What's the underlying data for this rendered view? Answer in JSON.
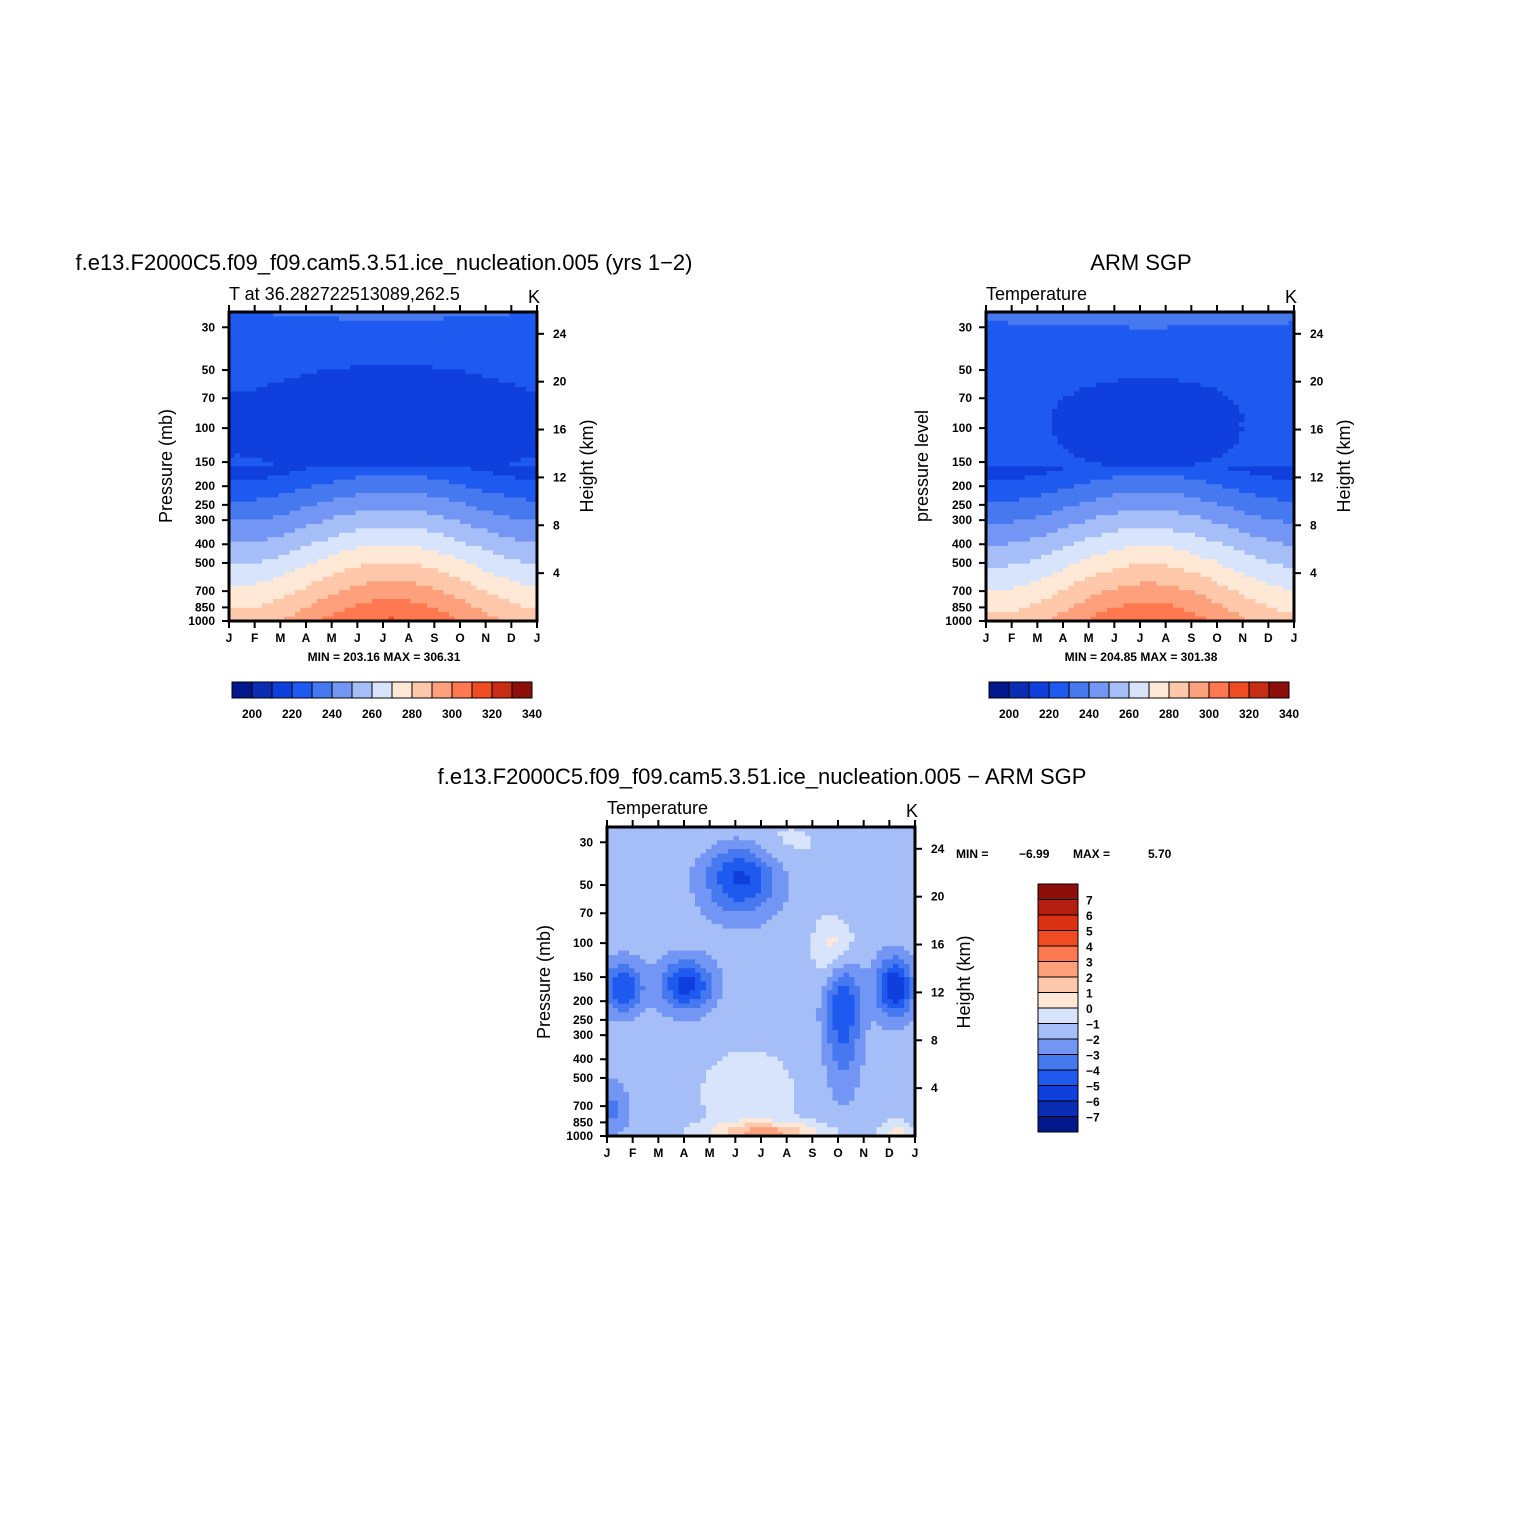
{
  "chart_data": [
    {
      "type": "heatmap",
      "title": "f.e13.F2000C5.f09_f09.cam5.3.51.ice_nucleation.005 (yrs 1−2)",
      "subtitle_left": "T at 36.282722513089,262.5",
      "subtitle_right": "K",
      "ylabel": "Pressure (mb)",
      "ylabel_right": "Height (km)",
      "x_ticks": [
        "J",
        "F",
        "M",
        "A",
        "M",
        "J",
        "J",
        "A",
        "S",
        "O",
        "N",
        "D",
        "J"
      ],
      "y_ticks": [
        "30",
        "50",
        "70",
        "100",
        "150",
        "200",
        "250",
        "300",
        "400",
        "500",
        "700",
        "850",
        "1000"
      ],
      "y_right_ticks": [
        "24",
        "20",
        "16",
        "12",
        "8",
        "4"
      ],
      "stats": "MIN = 203.16 MAX = 306.31",
      "colorbar_labels": [
        "200",
        "220",
        "240",
        "260",
        "280",
        "300",
        "320",
        "340"
      ],
      "levels": [
        190,
        200,
        210,
        220,
        230,
        240,
        250,
        260,
        270,
        280,
        290,
        300,
        310,
        320,
        330,
        340
      ],
      "value_range": [
        203.16,
        306.31
      ]
    },
    {
      "type": "heatmap",
      "title": "ARM SGP",
      "subtitle_left": "Temperature",
      "subtitle_right": "K",
      "ylabel": "pressure level",
      "ylabel_right": "Height (km)",
      "x_ticks": [
        "J",
        "F",
        "M",
        "A",
        "M",
        "J",
        "J",
        "A",
        "S",
        "O",
        "N",
        "D",
        "J"
      ],
      "y_ticks": [
        "30",
        "50",
        "70",
        "100",
        "150",
        "200",
        "250",
        "300",
        "400",
        "500",
        "700",
        "850",
        "1000"
      ],
      "y_right_ticks": [
        "24",
        "20",
        "16",
        "12",
        "8",
        "4"
      ],
      "stats": "MIN = 204.85 MAX = 301.38",
      "colorbar_labels": [
        "200",
        "220",
        "240",
        "260",
        "280",
        "300",
        "320",
        "340"
      ],
      "levels": [
        190,
        200,
        210,
        220,
        230,
        240,
        250,
        260,
        270,
        280,
        290,
        300,
        310,
        320,
        330,
        340
      ],
      "value_range": [
        204.85,
        301.38
      ]
    },
    {
      "type": "heatmap",
      "title": "f.e13.F2000C5.f09_f09.cam5.3.51.ice_nucleation.005 − ARM SGP",
      "subtitle_left": "Temperature",
      "subtitle_right": "K",
      "ylabel": "Pressure (mb)",
      "ylabel_right": "Height (km)",
      "x_ticks": [
        "J",
        "F",
        "M",
        "A",
        "M",
        "J",
        "J",
        "A",
        "S",
        "O",
        "N",
        "D",
        "J"
      ],
      "y_ticks": [
        "30",
        "50",
        "70",
        "100",
        "150",
        "200",
        "250",
        "300",
        "400",
        "500",
        "700",
        "850",
        "1000"
      ],
      "y_right_ticks": [
        "24",
        "20",
        "16",
        "12",
        "8",
        "4"
      ],
      "stats_min_label": "MIN =",
      "stats_min": "−6.99",
      "stats_max_label": "MAX =",
      "stats_max": "5.70",
      "colorbar_labels": [
        "7",
        "6",
        "5",
        "4",
        "3",
        "2",
        "1",
        "0",
        "−1",
        "−2",
        "−3",
        "−4",
        "−5",
        "−6",
        "−7"
      ],
      "value_range": [
        -6.99,
        5.7
      ]
    }
  ],
  "colors": {
    "temp_palette": [
      "#00188c",
      "#0a2db4",
      "#0f3fdc",
      "#1e5af0",
      "#4678f0",
      "#7396f5",
      "#a5bef8",
      "#d7e4fc",
      "#ffe8d6",
      "#ffc8aa",
      "#ffa07d",
      "#ff7850",
      "#f04b23",
      "#c82d14",
      "#8c0f0a"
    ],
    "diff_palette": [
      "#8c0f0a",
      "#b41e0f",
      "#dc3214",
      "#f04b23",
      "#ff7850",
      "#ffa07d",
      "#ffc8aa",
      "#ffe8d6",
      "#d7e4fc",
      "#a5bef8",
      "#7396f5",
      "#4678f0",
      "#1e5af0",
      "#0f3fdc",
      "#0a2db4",
      "#00188c"
    ]
  }
}
